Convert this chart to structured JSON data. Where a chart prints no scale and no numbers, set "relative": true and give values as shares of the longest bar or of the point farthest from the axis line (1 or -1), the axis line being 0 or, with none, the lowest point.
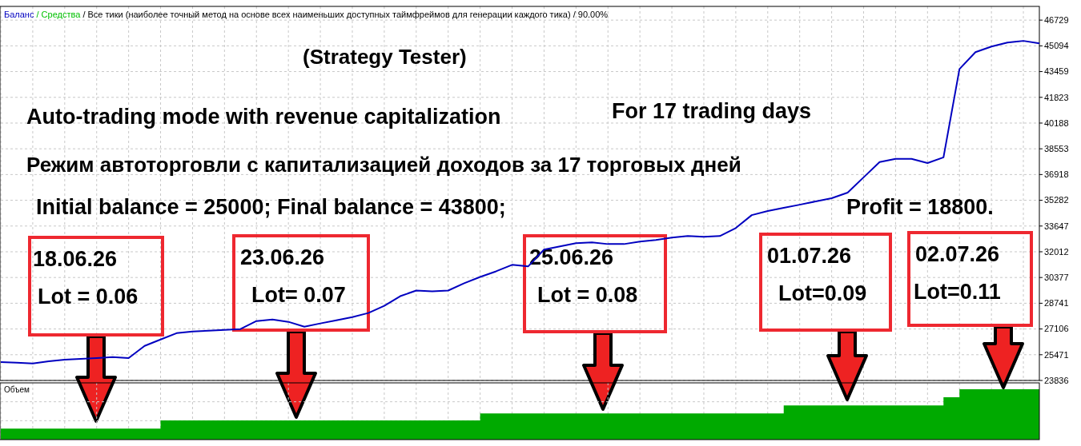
{
  "chart_data": [
    {
      "type": "line",
      "title": "(Strategy Tester)",
      "subtitle": "/ Все тики (наиболее точный метод на основе всех наименьших доступных таймфреймов для генерации каждого тика) / 90.00%",
      "categories": [
        null,
        null,
        null,
        null,
        null,
        null,
        null,
        null,
        null,
        null,
        null,
        null,
        null,
        null,
        null,
        null,
        null,
        null,
        null,
        null,
        null,
        null,
        null,
        null,
        null,
        null,
        null,
        null,
        null,
        null,
        null,
        null,
        null,
        null,
        null,
        null,
        null,
        null,
        null,
        null,
        null,
        null,
        null,
        null,
        null,
        null,
        null,
        null,
        null,
        null,
        null,
        null,
        null,
        null,
        null,
        null,
        null,
        null,
        null,
        null,
        null,
        null,
        null,
        null,
        null,
        null
      ],
      "series": [
        {
          "name": "Баланс",
          "color": "#0000c0",
          "values": [
            25010,
            24960,
            24910,
            25060,
            25160,
            25210,
            25260,
            25320,
            25260,
            26030,
            26440,
            26840,
            26950,
            27000,
            27050,
            27100,
            27610,
            27710,
            27560,
            27250,
            27460,
            27660,
            27860,
            28120,
            28580,
            29190,
            29550,
            29500,
            29550,
            30010,
            30410,
            30770,
            31180,
            31080,
            32150,
            32350,
            32560,
            32610,
            32500,
            32500,
            32660,
            32760,
            32910,
            33010,
            32960,
            33010,
            33520,
            34340,
            34600,
            34800,
            35000,
            35210,
            35410,
            35770,
            36740,
            37710,
            37910,
            37910,
            37650,
            38010,
            43620,
            44690,
            45050,
            45300,
            45410,
            45250
          ]
        },
        {
          "name": "/ Средства",
          "color": "#00c000",
          "values": [
            null,
            null,
            null,
            null,
            null,
            null,
            null,
            null,
            null,
            null,
            null,
            null,
            null,
            null,
            null,
            null,
            null,
            null,
            null,
            null,
            null,
            null,
            null,
            null,
            null,
            null,
            null,
            null,
            null,
            null,
            null,
            null,
            null,
            null,
            null,
            null,
            null,
            null,
            null,
            null,
            null,
            null,
            null,
            null,
            null,
            null,
            null,
            null,
            null,
            null,
            null,
            null,
            null,
            null,
            null,
            null,
            null,
            null,
            null,
            null,
            null,
            null,
            null,
            null,
            null,
            null
          ]
        }
      ],
      "ylim": [
        23836,
        47600
      ],
      "yticks": [
        23836,
        25471,
        27106,
        28741,
        30377,
        32012,
        33647,
        35282,
        36918,
        38553,
        40188,
        41823,
        43459,
        45094,
        46729
      ],
      "grid": true,
      "legend": "top left",
      "tick_labels": "y",
      "annotations": [
        "Auto-trading mode with revenue capitalization",
        "For 17 trading days",
        "Режим автоторговли с капитализацией доходов за 17 торговых дней",
        "Initial balance = 25000; Final balance = 43800;",
        "Profit = 18800.",
        "18.06.26\nLot = 0.06",
        "23.06.26\nLot= 0.07",
        "25.06.26\nLot = 0.08",
        "01.07.26\nLot=0.09",
        "02.07.26\nLot=0.11"
      ]
    },
    {
      "type": "area",
      "title": "Объем",
      "relative": true,
      "grid": true,
      "color": "#00aa00",
      "categories": [
        null,
        null,
        null,
        null,
        null,
        null,
        null,
        null,
        null,
        null,
        null,
        null,
        null,
        null,
        null,
        null,
        null,
        null,
        null,
        null,
        null,
        null,
        null,
        null,
        null,
        null,
        null,
        null,
        null,
        null,
        null,
        null,
        null,
        null,
        null,
        null,
        null,
        null,
        null,
        null,
        null,
        null,
        null,
        null,
        null,
        null,
        null,
        null,
        null,
        null,
        null,
        null,
        null,
        null,
        null,
        null,
        null,
        null,
        null,
        null,
        null,
        null,
        null,
        null,
        null,
        null
      ],
      "values": [
        0.22,
        0.22,
        0.22,
        0.22,
        0.22,
        0.22,
        0.22,
        0.22,
        0.22,
        0.22,
        0.38,
        0.38,
        0.38,
        0.38,
        0.38,
        0.38,
        0.38,
        0.38,
        0.38,
        0.38,
        0.38,
        0.38,
        0.38,
        0.38,
        0.38,
        0.38,
        0.38,
        0.38,
        0.38,
        0.38,
        0.52,
        0.52,
        0.52,
        0.52,
        0.52,
        0.52,
        0.52,
        0.52,
        0.52,
        0.52,
        0.52,
        0.52,
        0.52,
        0.52,
        0.52,
        0.52,
        0.52,
        0.52,
        0.52,
        0.68,
        0.68,
        0.68,
        0.68,
        0.68,
        0.68,
        0.68,
        0.68,
        0.68,
        0.68,
        0.84,
        1,
        1,
        1,
        1,
        1,
        1
      ]
    }
  ]
}
